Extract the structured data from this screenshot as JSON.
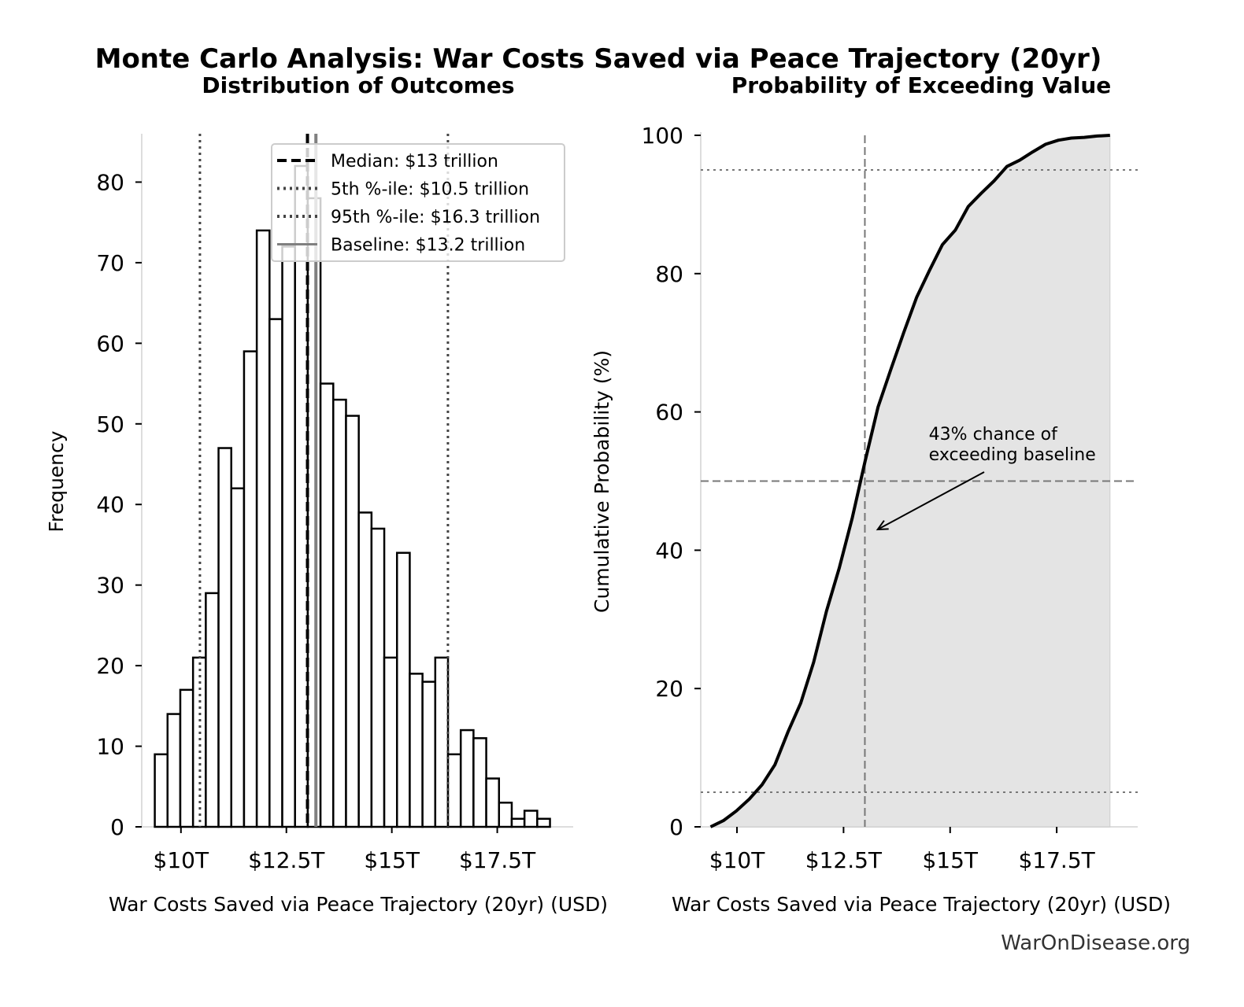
{
  "title": "Monte Carlo Analysis: War Costs Saved via Peace Trajectory (20yr)",
  "watermark": "WarOnDisease.org",
  "chart_data": [
    {
      "type": "bar",
      "subtitle": "Distribution of Outcomes",
      "xlabel": "War Costs Saved via Peace Trajectory (20yr) (USD)",
      "ylabel": "Frequency",
      "bin_start": 9.38,
      "bin_end": 18.75,
      "counts": [
        9,
        14,
        17,
        21,
        29,
        47,
        42,
        59,
        74,
        63,
        72,
        82,
        78,
        55,
        53,
        51,
        39,
        37,
        21,
        34,
        19,
        18,
        21,
        9,
        12,
        11,
        6,
        3,
        1,
        2,
        1
      ],
      "xlim": [
        9.07,
        19.3
      ],
      "ylim": [
        0,
        86
      ],
      "xticks": [
        {
          "v": 10,
          "label": "$10T"
        },
        {
          "v": 12.5,
          "label": "$12.5T"
        },
        {
          "v": 15,
          "label": "$15T"
        },
        {
          "v": 17.5,
          "label": "$17.5T"
        }
      ],
      "yticks": [
        0,
        10,
        20,
        30,
        40,
        50,
        60,
        70,
        80
      ],
      "grid": false,
      "legend_position": "top-right",
      "reference_lines": [
        {
          "name": "Median: $13 trillion",
          "x": 13.0,
          "style": "dashed",
          "color": "#000000"
        },
        {
          "name": "5th %-ile: $10.5 trillion",
          "x": 10.45,
          "style": "dotted",
          "color": "#444444"
        },
        {
          "name": "95th %-ile: $16.3 trillion",
          "x": 16.33,
          "style": "dotted",
          "color": "#444444"
        },
        {
          "name": "Baseline: $13.2 trillion",
          "x": 13.2,
          "style": "solid",
          "color": "#808080"
        }
      ]
    },
    {
      "type": "area",
      "subtitle": "Probability of Exceeding Value",
      "xlabel": "War Costs Saved via Peace Trajectory (20yr) (USD)",
      "ylabel": "Cumulative Probability (%)",
      "xlim": [
        9.15,
        19.4
      ],
      "ylim": [
        0,
        100
      ],
      "xticks": [
        {
          "v": 10,
          "label": "$10T"
        },
        {
          "v": 12.5,
          "label": "$12.5T"
        },
        {
          "v": 15,
          "label": "$15T"
        },
        {
          "v": 17.5,
          "label": "$17.5T"
        }
      ],
      "yticks": [
        0,
        20,
        40,
        60,
        80,
        100
      ],
      "fill_color": "#e4e4e4",
      "line_color": "#000000",
      "hlines": [
        {
          "y": 95,
          "style": "dotted"
        },
        {
          "y": 50,
          "style": "dashed"
        },
        {
          "y": 5,
          "style": "dotted"
        }
      ],
      "vline": {
        "x": 13.0,
        "style": "dashed"
      },
      "annotation": {
        "text_lines": [
          "43% chance of",
          "exceeding baseline"
        ],
        "text_x": 14.5,
        "text_y": 56,
        "arrow_x": 13.3,
        "arrow_y": 43
      }
    }
  ]
}
